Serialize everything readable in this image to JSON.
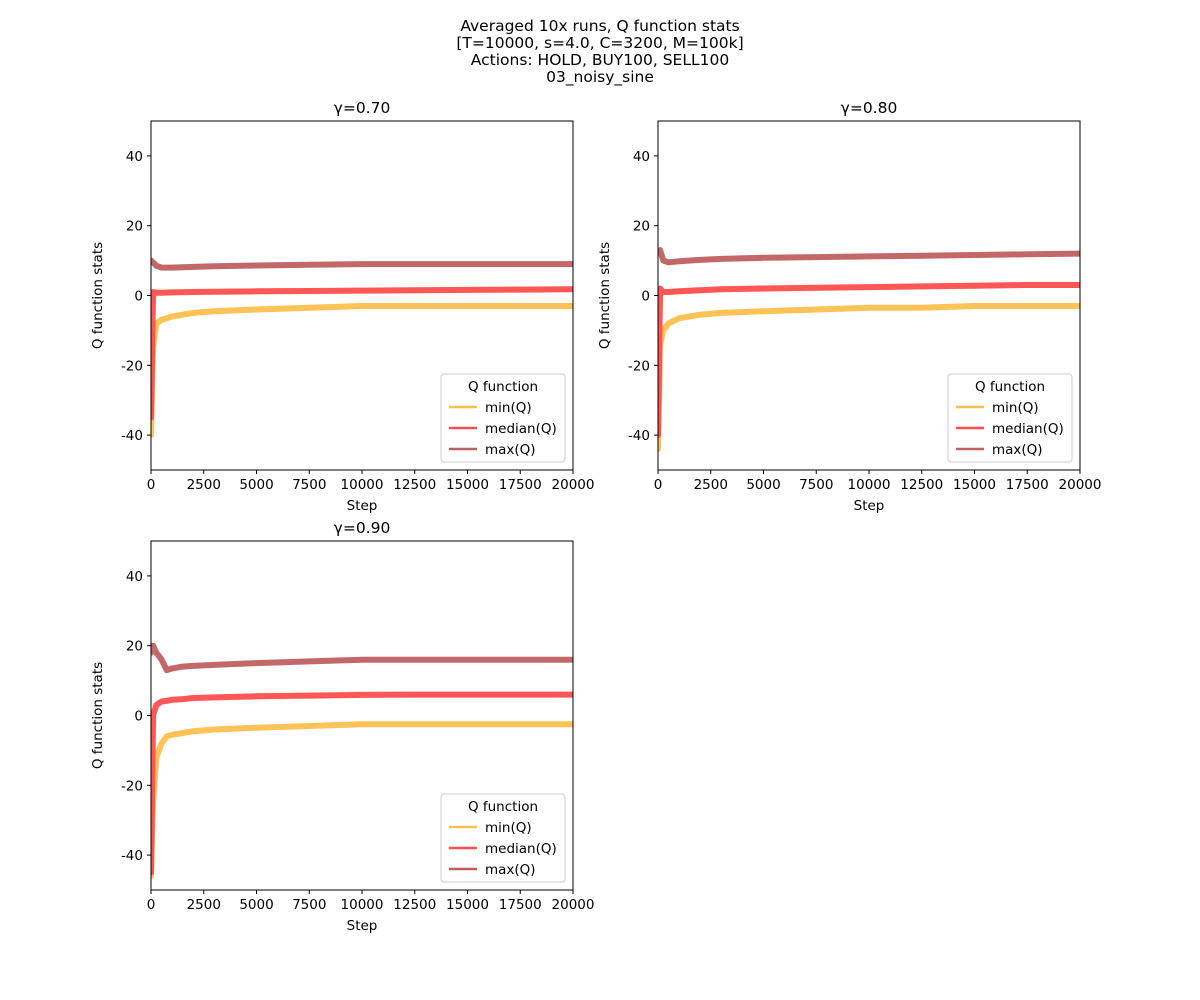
{
  "figure": {
    "title_lines": [
      "Averaged 10x runs, Q function stats",
      "[T=10000, s=4.0, C=3200, M=100k]",
      "Actions: HOLD, BUY100, SELL100",
      "03_noisy_sine"
    ]
  },
  "colors": {
    "min": "#ffbf4d",
    "median": "#ff4d4d",
    "max": "#bf6060",
    "axis": "#000000"
  },
  "legend": {
    "title": "Q function",
    "entries": [
      "min(Q)",
      "median(Q)",
      "max(Q)"
    ],
    "placement": "lower-right"
  },
  "chart_data": [
    {
      "type": "line",
      "title": "γ=0.70",
      "xlabel": "Step",
      "ylabel": "Q function stats",
      "xlim": [
        0,
        20000
      ],
      "ylim": [
        -50,
        50
      ],
      "x_ticks": [
        0,
        2500,
        5000,
        7500,
        10000,
        12500,
        15000,
        17500,
        20000
      ],
      "y_ticks": [
        -40,
        -20,
        0,
        20,
        40
      ],
      "grid": false,
      "legend_placement": "lower-right",
      "x": [
        0,
        100,
        250,
        500,
        1000,
        2000,
        3000,
        5000,
        7500,
        10000,
        12500,
        15000,
        17500,
        20000
      ],
      "series": [
        {
          "name": "min(Q)",
          "values": [
            -40,
            -15,
            -8,
            -7,
            -6,
            -5,
            -4.5,
            -4,
            -3.5,
            -3,
            -3,
            -3,
            -3,
            -3
          ]
        },
        {
          "name": "median(Q)",
          "values": [
            -35,
            1,
            0.8,
            0.8,
            0.9,
            1.0,
            1.1,
            1.2,
            1.3,
            1.4,
            1.5,
            1.6,
            1.7,
            1.8
          ]
        },
        {
          "name": "max(Q)",
          "values": [
            10,
            9.5,
            8.5,
            8,
            8,
            8.2,
            8.4,
            8.6,
            8.8,
            9,
            9,
            9,
            9,
            9
          ]
        }
      ]
    },
    {
      "type": "line",
      "title": "γ=0.80",
      "xlabel": "Step",
      "ylabel": "Q function stats",
      "xlim": [
        0,
        20000
      ],
      "ylim": [
        -50,
        50
      ],
      "x_ticks": [
        0,
        2500,
        5000,
        7500,
        10000,
        12500,
        15000,
        17500,
        20000
      ],
      "y_ticks": [
        -40,
        -20,
        0,
        20,
        40
      ],
      "grid": false,
      "legend_placement": "lower-right",
      "x": [
        0,
        100,
        250,
        500,
        1000,
        2000,
        3000,
        5000,
        7500,
        10000,
        12500,
        15000,
        17500,
        20000
      ],
      "series": [
        {
          "name": "min(Q)",
          "values": [
            -44,
            -14,
            -10,
            -8,
            -6.5,
            -5.5,
            -5,
            -4.5,
            -4,
            -3.5,
            -3.5,
            -3,
            -3,
            -3
          ]
        },
        {
          "name": "median(Q)",
          "values": [
            -40,
            2,
            1,
            1,
            1.2,
            1.5,
            1.8,
            2,
            2.2,
            2.4,
            2.6,
            2.8,
            3,
            3
          ]
        },
        {
          "name": "max(Q)",
          "values": [
            12,
            13,
            10,
            9.5,
            9.8,
            10.2,
            10.5,
            10.8,
            11,
            11.2,
            11.4,
            11.6,
            11.8,
            12
          ]
        }
      ]
    },
    {
      "type": "line",
      "title": "γ=0.90",
      "xlabel": "Step",
      "ylabel": "Q function stats",
      "xlim": [
        0,
        20000
      ],
      "ylim": [
        -50,
        50
      ],
      "x_ticks": [
        0,
        2500,
        5000,
        7500,
        10000,
        12500,
        15000,
        17500,
        20000
      ],
      "y_ticks": [
        -40,
        -20,
        0,
        20,
        40
      ],
      "grid": false,
      "legend_placement": "lower-right",
      "x": [
        0,
        100,
        250,
        500,
        750,
        1000,
        1500,
        2000,
        3000,
        5000,
        7500,
        10000,
        12500,
        15000,
        17500,
        20000
      ],
      "series": [
        {
          "name": "min(Q)",
          "values": [
            -46,
            -25,
            -12,
            -8,
            -6,
            -5.5,
            -5,
            -4.5,
            -4,
            -3.5,
            -3,
            -2.5,
            -2.5,
            -2.5,
            -2.5,
            -2.5
          ]
        },
        {
          "name": "median(Q)",
          "values": [
            -45,
            0,
            3,
            4,
            4.2,
            4.5,
            4.7,
            5,
            5.2,
            5.5,
            5.7,
            5.9,
            6,
            6,
            6,
            6
          ]
        },
        {
          "name": "max(Q)",
          "values": [
            18,
            20,
            18,
            16,
            13,
            13.5,
            14,
            14.2,
            14.5,
            15,
            15.5,
            16,
            16,
            16,
            16,
            16
          ]
        }
      ]
    }
  ]
}
